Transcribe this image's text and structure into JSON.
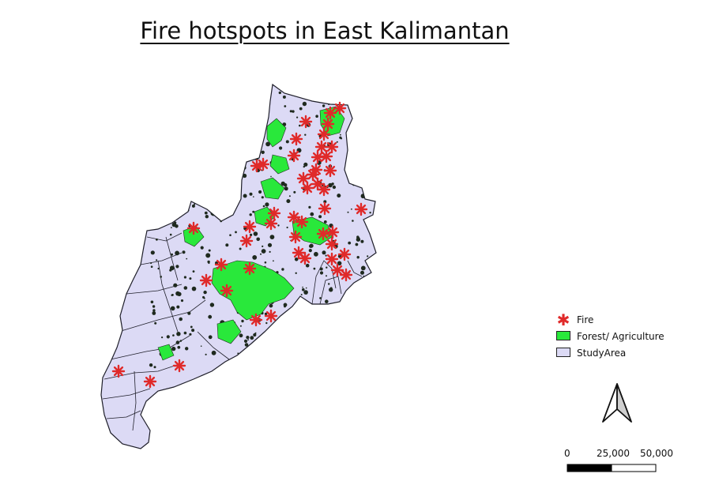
{
  "title": "Fire hotspots in East Kalimantan",
  "colors": {
    "study_area": "#dcdaf5",
    "forest": "#29e83b",
    "fire": "#e02a2a",
    "outline": "#1f1f2a"
  },
  "legend": {
    "items": [
      {
        "label": "Fire",
        "symbol": "fire-star"
      },
      {
        "label": "Forest/ Agriculture",
        "symbol": "green-fill"
      },
      {
        "label": "StudyArea",
        "symbol": "lavender-fill"
      }
    ]
  },
  "scale_bar": {
    "labels": [
      "0",
      "25,000",
      "50,000"
    ]
  },
  "north_arrow": {
    "icon": "north-arrow-icon"
  }
}
